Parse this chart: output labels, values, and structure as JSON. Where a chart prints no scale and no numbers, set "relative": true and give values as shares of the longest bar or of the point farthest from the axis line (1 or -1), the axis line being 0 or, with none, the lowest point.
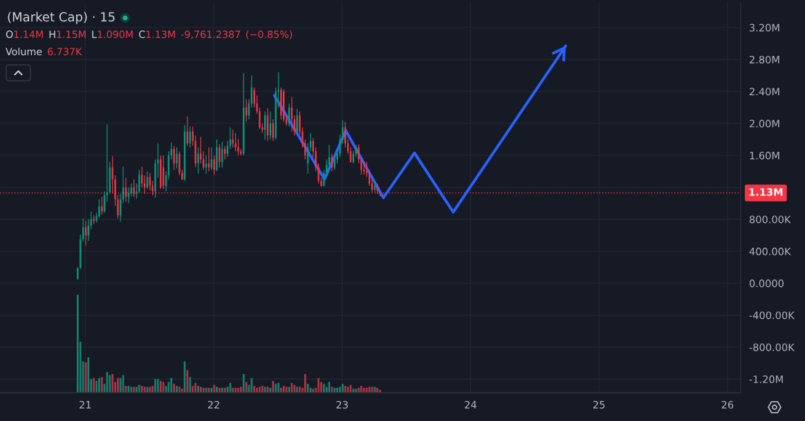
{
  "chart_data": [
    {
      "type": "candlestick",
      "title": "(Market Cap) · 15",
      "annotations": [
        "O1.14M H1.15M L1.090M C1.13M -9,761.2387 (−0.85%)",
        "Volume 6.737K"
      ],
      "x": [
        20.941,
        20.962,
        20.983,
        21.004,
        21.024,
        21.045,
        21.066,
        21.087,
        21.108,
        21.129,
        21.149,
        21.17,
        21.191,
        21.212,
        21.233,
        21.254,
        21.274,
        21.295,
        21.316,
        21.337,
        21.358,
        21.379,
        21.399,
        21.42,
        21.441,
        21.462,
        21.483,
        21.504,
        21.524,
        21.545,
        21.566,
        21.587,
        21.608,
        21.629,
        21.649,
        21.67,
        21.691,
        21.712,
        21.733,
        21.754,
        21.774,
        21.795,
        21.816,
        21.837,
        21.858,
        21.879,
        21.899,
        21.92,
        21.941,
        21.962,
        21.983,
        22.004,
        22.024,
        22.045,
        22.066,
        22.087,
        22.108,
        22.129,
        22.149,
        22.17,
        22.191,
        22.212,
        22.233,
        22.254,
        22.274,
        22.295,
        22.316,
        22.337,
        22.358,
        22.379,
        22.399,
        22.42,
        22.441,
        22.462,
        22.483,
        22.504,
        22.524,
        22.545,
        22.566,
        22.587,
        22.608,
        22.629,
        22.649,
        22.67,
        22.691,
        22.712,
        22.733,
        22.754,
        22.774,
        22.795,
        22.816,
        22.837,
        22.858,
        22.879,
        22.899,
        22.92,
        22.941,
        22.962,
        22.983,
        23.004,
        23.024,
        23.045,
        23.066,
        23.087,
        23.108,
        23.129,
        23.149,
        23.17,
        23.191,
        23.212,
        23.233,
        23.254,
        23.274,
        23.295
      ],
      "ohlc": [
        [
          50000,
          200000,
          50000,
          190000
        ],
        [
          190000,
          610000,
          180000,
          550000
        ],
        [
          550000,
          810000,
          520000,
          700000
        ],
        [
          700000,
          780000,
          470000,
          600000
        ],
        [
          600000,
          800000,
          530000,
          720000
        ],
        [
          720000,
          900000,
          680000,
          800000
        ],
        [
          800000,
          850000,
          740000,
          780000
        ],
        [
          780000,
          880000,
          760000,
          840000
        ],
        [
          840000,
          1050000,
          820000,
          960000
        ],
        [
          960000,
          1080000,
          860000,
          900000
        ],
        [
          900000,
          1150000,
          880000,
          1100000
        ],
        [
          1100000,
          1990000,
          1020000,
          1140000
        ],
        [
          1140000,
          1520000,
          1120000,
          1450000
        ],
        [
          1450000,
          1590000,
          1120000,
          1300000
        ],
        [
          1300000,
          1350000,
          970000,
          1050000
        ],
        [
          1050000,
          1100000,
          810000,
          850000
        ],
        [
          850000,
          1120000,
          770000,
          1050000
        ],
        [
          1050000,
          1460000,
          1000000,
          1200000
        ],
        [
          1200000,
          1320000,
          1020000,
          1080000
        ],
        [
          1080000,
          1200000,
          1000000,
          1130000
        ],
        [
          1130000,
          1250000,
          1090000,
          1200000
        ],
        [
          1200000,
          1300000,
          1080000,
          1120000
        ],
        [
          1120000,
          1250000,
          1060000,
          1150000
        ],
        [
          1150000,
          1420000,
          1130000,
          1360000
        ],
        [
          1360000,
          1460000,
          1200000,
          1250000
        ],
        [
          1250000,
          1350000,
          1120000,
          1200000
        ],
        [
          1200000,
          1400000,
          1180000,
          1330000
        ],
        [
          1330000,
          1380000,
          1160000,
          1220000
        ],
        [
          1220000,
          1280000,
          1100000,
          1150000
        ],
        [
          1150000,
          1550000,
          1070000,
          1500000
        ],
        [
          1500000,
          1750000,
          1320000,
          1550000
        ],
        [
          1550000,
          1600000,
          1180000,
          1200000
        ],
        [
          1450000,
          1600000,
          1180000,
          1220000
        ],
        [
          1220000,
          1400000,
          1150000,
          1350000
        ],
        [
          1350000,
          1650000,
          1300000,
          1600000
        ],
        [
          1600000,
          1760000,
          1550000,
          1680000
        ],
        [
          1680000,
          1720000,
          1420000,
          1500000
        ],
        [
          1500000,
          1700000,
          1440000,
          1620000
        ],
        [
          1620000,
          1650000,
          1350000,
          1380000
        ],
        [
          1380000,
          1420000,
          1290000,
          1300000
        ],
        [
          1300000,
          1980000,
          1280000,
          1900000
        ],
        [
          1900000,
          2090000,
          1720000,
          1750000
        ],
        [
          1750000,
          1960000,
          1700000,
          1900000
        ],
        [
          1900000,
          1960000,
          1720000,
          1780000
        ],
        [
          1780000,
          1850000,
          1450000,
          1500000
        ],
        [
          1500000,
          1700000,
          1370000,
          1620000
        ],
        [
          1620000,
          1830000,
          1500000,
          1550000
        ],
        [
          1550000,
          1650000,
          1420000,
          1450000
        ],
        [
          1450000,
          1600000,
          1370000,
          1500000
        ],
        [
          1500000,
          1700000,
          1400000,
          1450000
        ],
        [
          1450000,
          1700000,
          1420000,
          1550000
        ],
        [
          1550000,
          1600000,
          1360000,
          1420000
        ],
        [
          1420000,
          1800000,
          1400000,
          1700000
        ],
        [
          1700000,
          1740000,
          1450000,
          1520000
        ],
        [
          1520000,
          1770000,
          1450000,
          1680000
        ],
        [
          1680000,
          1720000,
          1550000,
          1620000
        ],
        [
          1620000,
          1780000,
          1580000,
          1720000
        ],
        [
          1720000,
          1950000,
          1680000,
          1800000
        ],
        [
          1800000,
          1920000,
          1700000,
          1750000
        ],
        [
          1750000,
          1880000,
          1650000,
          1700000
        ],
        [
          1700000,
          1800000,
          1600000,
          1650000
        ],
        [
          1650000,
          1680000,
          1600000,
          1620000
        ],
        [
          1620000,
          2630000,
          1600000,
          2200000
        ],
        [
          2200000,
          2300000,
          2020000,
          2100000
        ],
        [
          2100000,
          2300000,
          2050000,
          2250000
        ],
        [
          2250000,
          2600000,
          2200000,
          2450000
        ],
        [
          2420000,
          2450000,
          2200000,
          2250000
        ],
        [
          2250000,
          2350000,
          2120000,
          2150000
        ],
        [
          2150000,
          2200000,
          1930000,
          1950000
        ],
        [
          1950000,
          2000000,
          1880000,
          1920000
        ],
        [
          1920000,
          2150000,
          1800000,
          2100000
        ],
        [
          2100000,
          2190000,
          1780000,
          1850000
        ],
        [
          1850000,
          2150000,
          1800000,
          2000000
        ],
        [
          2000000,
          2050000,
          1780000,
          1820000
        ],
        [
          1820000,
          2450000,
          1800000,
          2400000
        ],
        [
          2400000,
          2640000,
          2200000,
          2420000
        ],
        [
          2420000,
          2450000,
          2050000,
          2100000
        ],
        [
          2400000,
          2430000,
          2020000,
          2050000
        ],
        [
          2050000,
          2100000,
          1970000,
          2000000
        ],
        [
          2000000,
          2250000,
          1960000,
          2200000
        ],
        [
          2200000,
          2330000,
          1900000,
          2050000
        ],
        [
          2050000,
          2100000,
          1850000,
          1900000
        ],
        [
          1900000,
          2180000,
          1870000,
          2100000
        ],
        [
          2100000,
          2150000,
          1860000,
          1900000
        ],
        [
          1900000,
          1950000,
          1700000,
          1750000
        ],
        [
          1750000,
          1800000,
          1550000,
          1600000
        ],
        [
          1500000,
          1750000,
          1370000,
          1700000
        ],
        [
          1700000,
          1880000,
          1650000,
          1780000
        ],
        [
          1780000,
          1820000,
          1580000,
          1650000
        ],
        [
          1650000,
          1700000,
          1400000,
          1450000
        ],
        [
          1450000,
          1500000,
          1250000,
          1280000
        ],
        [
          1280000,
          1320000,
          1210000,
          1220000
        ],
        [
          1220000,
          1420000,
          1210000,
          1380000
        ],
        [
          1380000,
          1550000,
          1340000,
          1480000
        ],
        [
          1480000,
          1730000,
          1400000,
          1580000
        ],
        [
          1580000,
          1620000,
          1400000,
          1450000
        ],
        [
          1450000,
          1600000,
          1420000,
          1550000
        ],
        [
          1550000,
          1680000,
          1500000,
          1620000
        ],
        [
          1620000,
          1860000,
          1580000,
          1800000
        ],
        [
          1800000,
          2040000,
          1750000,
          1950000
        ],
        [
          1950000,
          2020000,
          1700000,
          1750000
        ],
        [
          1750000,
          1800000,
          1620000,
          1650000
        ],
        [
          1650000,
          1700000,
          1510000,
          1520000
        ],
        [
          1520000,
          1660000,
          1500000,
          1620000
        ],
        [
          1620000,
          1730000,
          1580000,
          1700000
        ],
        [
          1700000,
          1740000,
          1500000,
          1550000
        ],
        [
          1550000,
          1580000,
          1360000,
          1420000
        ],
        [
          1420000,
          1520000,
          1360000,
          1400000
        ],
        [
          1400000,
          1520000,
          1330000,
          1380000
        ],
        [
          1380000,
          1420000,
          1220000,
          1250000
        ],
        [
          1250000,
          1300000,
          1140000,
          1170000
        ],
        [
          1170000,
          1280000,
          1140000,
          1220000
        ],
        [
          1220000,
          1250000,
          1120000,
          1160000
        ],
        [
          1140000,
          1150000,
          1090000,
          1130000
        ]
      ],
      "colors": [
        "#089981",
        "#089981",
        "#089981",
        "#f23645",
        "#089981",
        "#089981",
        "#f23645",
        "#089981",
        "#089981",
        "#f23645",
        "#089981",
        "#089981",
        "#089981",
        "#f23645",
        "#f23645",
        "#f23645",
        "#089981",
        "#089981",
        "#f23645",
        "#089981",
        "#089981",
        "#f23645",
        "#089981",
        "#089981",
        "#f23645",
        "#f23645",
        "#089981",
        "#f23645",
        "#f23645",
        "#089981",
        "#089981",
        "#f23645",
        "#f23645",
        "#089981",
        "#089981",
        "#089981",
        "#f23645",
        "#089981",
        "#f23645",
        "#f23645",
        "#089981",
        "#f23645",
        "#089981",
        "#f23645",
        "#f23645",
        "#089981",
        "#f23645",
        "#f23645",
        "#089981",
        "#f23645",
        "#089981",
        "#f23645",
        "#089981",
        "#f23645",
        "#089981",
        "#f23645",
        "#089981",
        "#089981",
        "#f23645",
        "#f23645",
        "#f23645",
        "#f23645",
        "#089981",
        "#f23645",
        "#089981",
        "#089981",
        "#f23645",
        "#f23645",
        "#f23645",
        "#f23645",
        "#089981",
        "#f23645",
        "#089981",
        "#f23645",
        "#089981",
        "#089981",
        "#f23645",
        "#f23645",
        "#f23645",
        "#089981",
        "#f23645",
        "#f23645",
        "#089981",
        "#f23645",
        "#f23645",
        "#f23645",
        "#089981",
        "#089981",
        "#f23645",
        "#f23645",
        "#f23645",
        "#f23645",
        "#089981",
        "#089981",
        "#089981",
        "#f23645",
        "#089981",
        "#089981",
        "#089981",
        "#089981",
        "#f23645",
        "#f23645",
        "#f23645",
        "#089981",
        "#089981",
        "#f23645",
        "#f23645",
        "#f23645",
        "#f23645",
        "#f23645",
        "#f23645",
        "#089981",
        "#f23645",
        "#f23645"
      ],
      "series": [
        {
          "type": "line",
          "color": "#2962ff",
          "x": [
            22.472,
            22.863,
            23.028,
            23.321,
            23.563,
            23.865,
            24.741
          ],
          "values": [
            2350000,
            1300000,
            1910000,
            1070000,
            1630000,
            890000,
            2970000
          ]
        }
      ],
      "xlim": [
        20.336,
        26.103
      ],
      "xticks": [
        21,
        22,
        23,
        24,
        25,
        26
      ],
      "ylim": [
        -1370000,
        3510000
      ],
      "yticks": [
        {
          "value": 3200000,
          "label": "3.20M"
        },
        {
          "value": 2800000,
          "label": "2.80M"
        },
        {
          "value": 2400000,
          "label": "2.40M"
        },
        {
          "value": 2000000,
          "label": "2.00M"
        },
        {
          "value": 1600000,
          "label": "1.60M"
        },
        {
          "value": 1200000,
          "label": null
        },
        {
          "value": 800000,
          "label": "800.00K"
        },
        {
          "value": 400000,
          "label": "400.00K"
        },
        {
          "value": 0,
          "label": "0.0000"
        },
        {
          "value": -400000,
          "label": "-400.00K"
        },
        {
          "value": -800000,
          "label": "-800.00K"
        },
        {
          "value": -1200000,
          "label": "-1.20M"
        }
      ],
      "ref_lines": [
        {
          "axis": "y",
          "value": 1130000,
          "label": "1.13M",
          "color": "#f23645",
          "line_style": "dotted"
        }
      ],
      "grid": true
    },
    {
      "type": "bar",
      "relative": true,
      "tick_labels": false,
      "xlim": [
        20.336,
        26.103
      ],
      "x": [
        20.941,
        20.962,
        20.983,
        21.004,
        21.024,
        21.045,
        21.066,
        21.087,
        21.108,
        21.129,
        21.149,
        21.17,
        21.191,
        21.212,
        21.233,
        21.254,
        21.274,
        21.295,
        21.316,
        21.337,
        21.358,
        21.379,
        21.399,
        21.42,
        21.441,
        21.462,
        21.483,
        21.504,
        21.524,
        21.545,
        21.566,
        21.587,
        21.608,
        21.629,
        21.649,
        21.67,
        21.691,
        21.712,
        21.733,
        21.754,
        21.774,
        21.795,
        21.816,
        21.837,
        21.858,
        21.879,
        21.899,
        21.92,
        21.941,
        21.962,
        21.983,
        22.004,
        22.024,
        22.045,
        22.066,
        22.087,
        22.108,
        22.129,
        22.149,
        22.17,
        22.191,
        22.212,
        22.233,
        22.254,
        22.274,
        22.295,
        22.316,
        22.337,
        22.358,
        22.379,
        22.399,
        22.42,
        22.441,
        22.462,
        22.483,
        22.504,
        22.524,
        22.545,
        22.566,
        22.587,
        22.608,
        22.629,
        22.649,
        22.67,
        22.691,
        22.712,
        22.733,
        22.754,
        22.774,
        22.795,
        22.816,
        22.837,
        22.858,
        22.879,
        22.899,
        22.92,
        22.941,
        22.962,
        22.983,
        23.004,
        23.024,
        23.045,
        23.066,
        23.087,
        23.108,
        23.129,
        23.149,
        23.17,
        23.191,
        23.212,
        23.233,
        23.254,
        23.274,
        23.295
      ],
      "values": [
        1.0,
        0.52,
        0.32,
        0.31,
        0.36,
        0.14,
        0.15,
        0.12,
        0.15,
        0.16,
        0.09,
        0.21,
        0.18,
        0.19,
        0.11,
        0.15,
        0.15,
        0.18,
        0.07,
        0.07,
        0.06,
        0.06,
        0.06,
        0.08,
        0.07,
        0.06,
        0.06,
        0.06,
        0.07,
        0.14,
        0.14,
        0.12,
        0.11,
        0.07,
        0.11,
        0.15,
        0.09,
        0.07,
        0.06,
        0.04,
        0.32,
        0.23,
        0.16,
        0.07,
        0.1,
        0.07,
        0.06,
        0.05,
        0.05,
        0.05,
        0.05,
        0.08,
        0.06,
        0.05,
        0.05,
        0.05,
        0.06,
        0.1,
        0.05,
        0.05,
        0.05,
        0.06,
        0.19,
        0.11,
        0.08,
        0.15,
        0.07,
        0.05,
        0.06,
        0.07,
        0.06,
        0.06,
        0.05,
        0.12,
        0.09,
        0.1,
        0.05,
        0.07,
        0.06,
        0.06,
        0.1,
        0.08,
        0.06,
        0.06,
        0.05,
        0.19,
        0.09,
        0.05,
        0.04,
        0.05,
        0.15,
        0.11,
        0.09,
        0.06,
        0.11,
        0.06,
        0.05,
        0.05,
        0.06,
        0.09,
        0.07,
        0.06,
        0.08,
        0.04,
        0.04,
        0.05,
        0.07,
        0.05,
        0.05,
        0.06,
        0.06,
        0.06,
        0.05,
        0.03
      ],
      "colors": [
        "#17806f",
        "#17806f",
        "#17806f",
        "#b03543",
        "#17806f",
        "#17806f",
        "#b03543",
        "#17806f",
        "#17806f",
        "#b03543",
        "#17806f",
        "#17806f",
        "#17806f",
        "#b03543",
        "#b03543",
        "#b03543",
        "#17806f",
        "#17806f",
        "#b03543",
        "#17806f",
        "#17806f",
        "#b03543",
        "#17806f",
        "#17806f",
        "#b03543",
        "#b03543",
        "#17806f",
        "#b03543",
        "#b03543",
        "#17806f",
        "#17806f",
        "#b03543",
        "#b03543",
        "#17806f",
        "#17806f",
        "#17806f",
        "#b03543",
        "#17806f",
        "#b03543",
        "#b03543",
        "#17806f",
        "#b03543",
        "#17806f",
        "#b03543",
        "#b03543",
        "#17806f",
        "#b03543",
        "#b03543",
        "#17806f",
        "#b03543",
        "#17806f",
        "#b03543",
        "#17806f",
        "#b03543",
        "#17806f",
        "#b03543",
        "#17806f",
        "#17806f",
        "#b03543",
        "#b03543",
        "#b03543",
        "#b03543",
        "#17806f",
        "#b03543",
        "#17806f",
        "#17806f",
        "#b03543",
        "#b03543",
        "#b03543",
        "#b03543",
        "#17806f",
        "#b03543",
        "#17806f",
        "#b03543",
        "#17806f",
        "#17806f",
        "#b03543",
        "#b03543",
        "#b03543",
        "#17806f",
        "#b03543",
        "#b03543",
        "#17806f",
        "#b03543",
        "#b03543",
        "#b03543",
        "#17806f",
        "#17806f",
        "#b03543",
        "#b03543",
        "#b03543",
        "#b03543",
        "#17806f",
        "#17806f",
        "#17806f",
        "#b03543",
        "#17806f",
        "#17806f",
        "#17806f",
        "#17806f",
        "#b03543",
        "#b03543",
        "#b03543",
        "#17806f",
        "#17806f",
        "#b03543",
        "#b03543",
        "#b03543",
        "#b03543",
        "#b03543",
        "#b03543",
        "#17806f",
        "#b03543",
        "#b03543"
      ]
    }
  ]
}
